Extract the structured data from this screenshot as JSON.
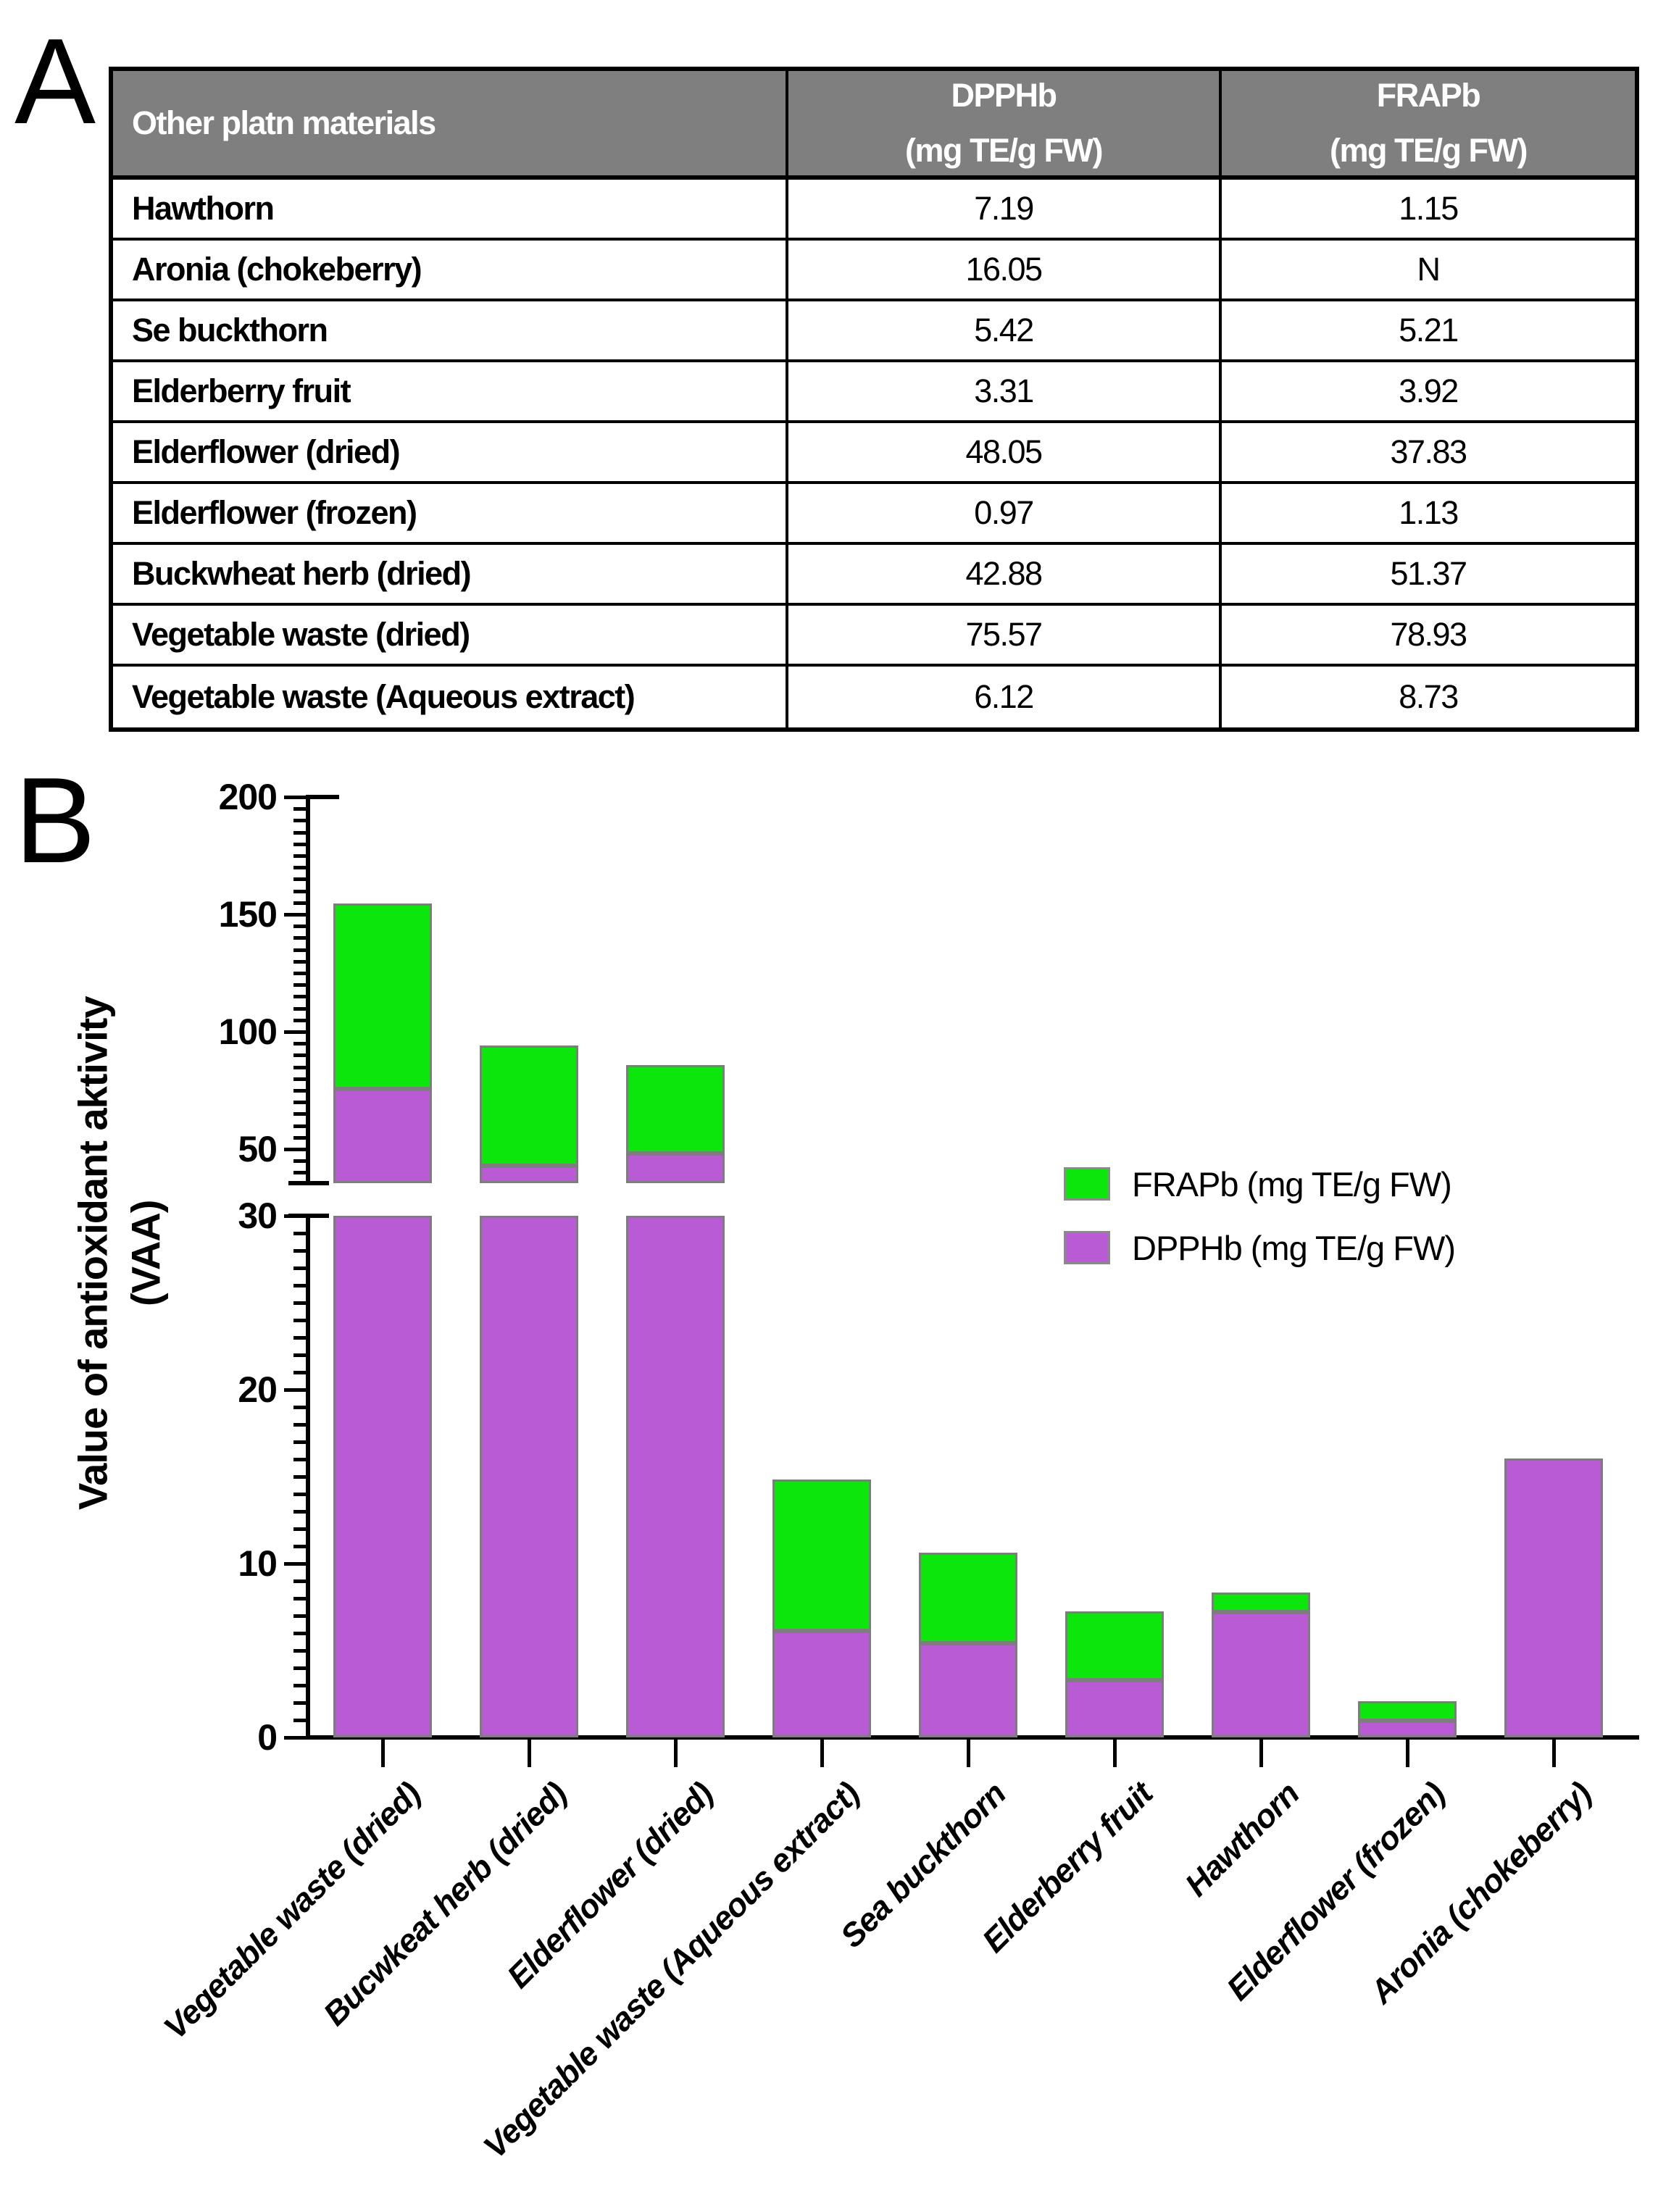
{
  "panel_a": {
    "label": "A",
    "table": {
      "header": {
        "col1": "Other platn materials",
        "col2_line1": "DPPHb",
        "col2_line2": "(mg TE/g FW)",
        "col3_line1": "FRAPb",
        "col3_line2": "(mg TE/g FW)"
      },
      "rows": [
        {
          "name": "Hawthorn",
          "dpph": "7.19",
          "frap": "1.15"
        },
        {
          "name": "Aronia (chokeberry)",
          "dpph": "16.05",
          "frap": "N"
        },
        {
          "name": "Se buckthorn",
          "dpph": "5.42",
          "frap": "5.21"
        },
        {
          "name": "Elderberry fruit",
          "dpph": "3.31",
          "frap": "3.92"
        },
        {
          "name": "Elderflower (dried)",
          "dpph": "48.05",
          "frap": "37.83"
        },
        {
          "name": "Elderflower (frozen)",
          "dpph": "0.97",
          "frap": "1.13"
        },
        {
          "name": "Buckwheat herb (dried)",
          "dpph": "42.88",
          "frap": "51.37"
        },
        {
          "name": "Vegetable waste (dried)",
          "dpph": "75.57",
          "frap": "78.93"
        },
        {
          "name": "Vegetable waste (Aqueous extract)",
          "dpph": "6.12",
          "frap": "8.73"
        }
      ]
    }
  },
  "panel_b": {
    "label": "B",
    "chart_data": {
      "type": "bar",
      "stacked": true,
      "ylabel_line1": "Value of antioxidant aktivity",
      "ylabel_line2": "(VAA)",
      "legend": [
        {
          "label": "FRAPb (mg TE/g FW)",
          "color": "#0ce60c"
        },
        {
          "label": "DPPHb (mg TE/g FW)",
          "color": "#b85bd5"
        }
      ],
      "categories": [
        "Vegetable waste (dried)",
        "Bucwkeat herb (dried)",
        "Elderflower (dried)",
        "Vegetable waste (Aqueous extract)",
        "Sea buckthorn",
        "Elderberry fruit",
        "Hawthorn",
        "Elderflower (frozen)",
        "Aronia (chokeberry)"
      ],
      "series": [
        {
          "name": "DPPHb (mg TE/g FW)",
          "color": "#b85bd5",
          "values": [
            75.57,
            42.88,
            48.05,
            6.12,
            5.42,
            3.31,
            7.19,
            0.97,
            16.05
          ]
        },
        {
          "name": "FRAPb (mg TE/g FW)",
          "color": "#0ce60c",
          "values": [
            78.93,
            51.37,
            37.83,
            8.73,
            5.21,
            3.92,
            1.15,
            1.13,
            0
          ]
        }
      ],
      "axis_break": {
        "lower_range": [
          0,
          30
        ],
        "upper_range": [
          40,
          200
        ]
      },
      "y_axis": {
        "upper_majors": [
          50,
          100,
          150,
          200
        ],
        "upper_minor_step": 5,
        "lower_majors": [
          0,
          10,
          20,
          30
        ],
        "lower_minor_step": 1
      },
      "grid": false,
      "legend_position": "center-right"
    }
  }
}
